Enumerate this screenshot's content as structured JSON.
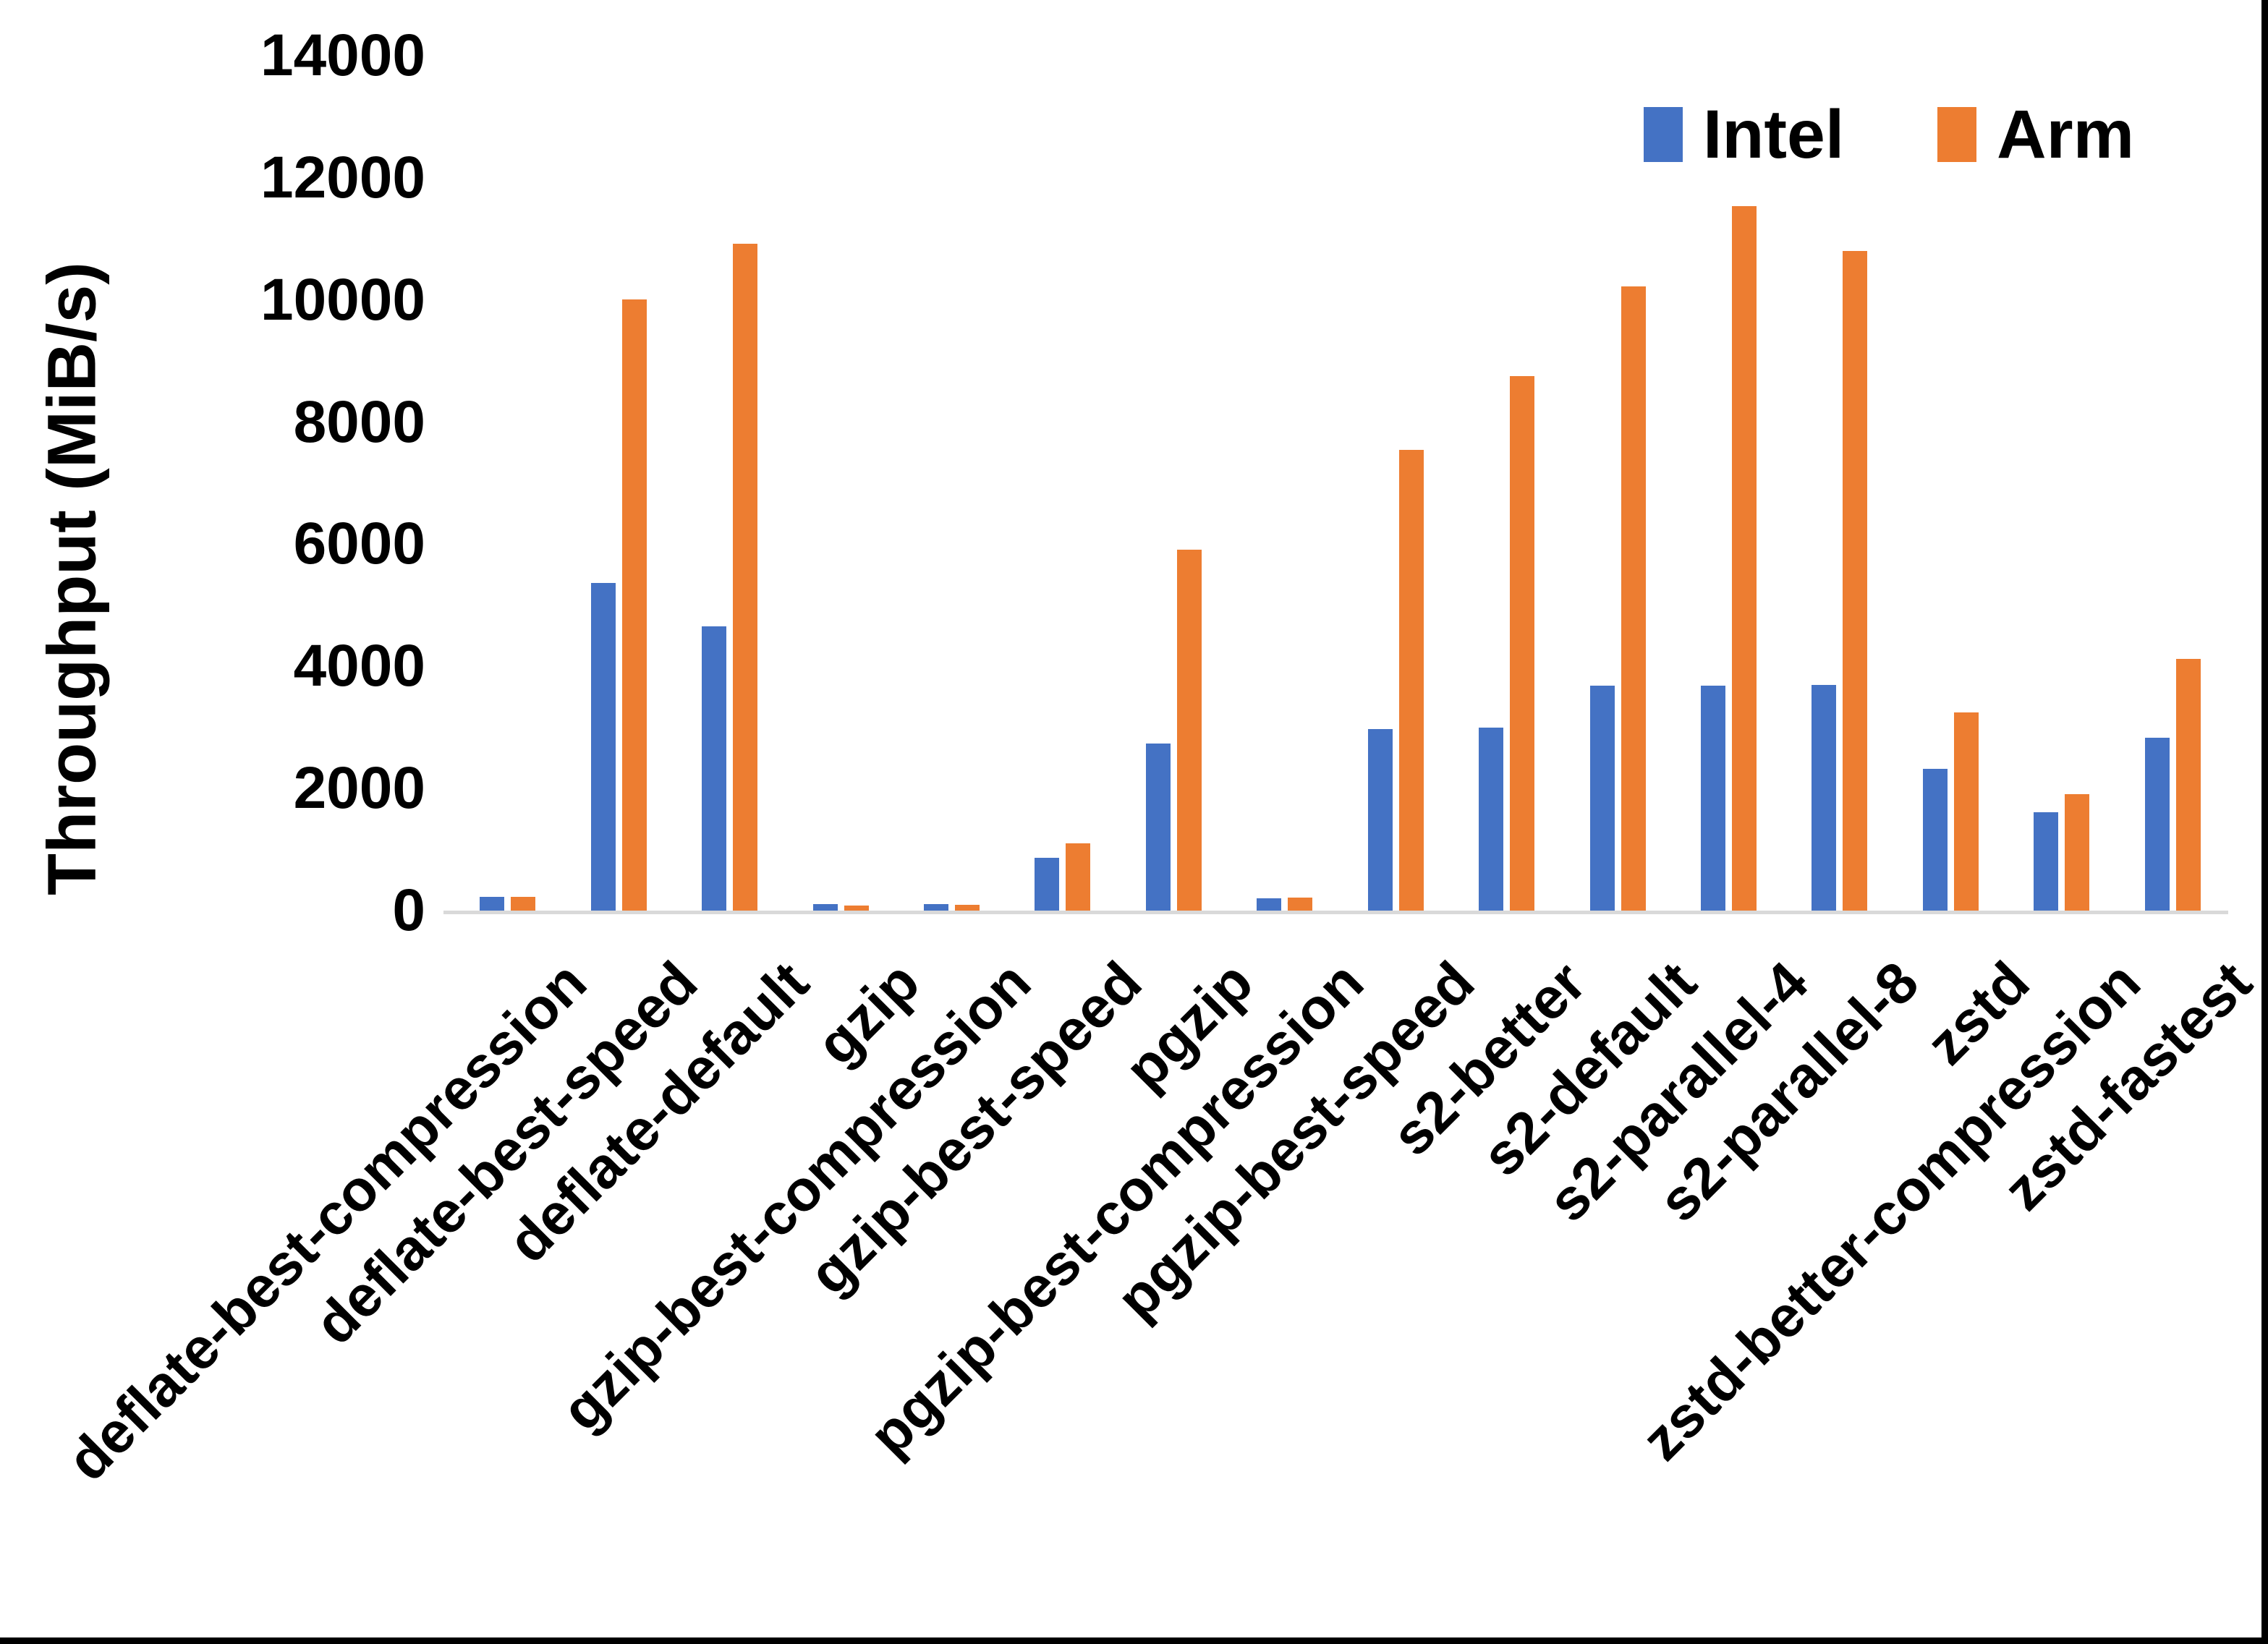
{
  "chart_data": {
    "type": "bar",
    "title": "",
    "xlabel": "",
    "ylabel": "Throughput (MiB/s)",
    "ylim": [
      0,
      14000
    ],
    "ytick_step": 2000,
    "y_tick_labels": [
      "0",
      "2000",
      "4000",
      "6000",
      "8000",
      "10000",
      "12000",
      "14000"
    ],
    "grid": false,
    "legend_position": "top-right",
    "categories": [
      "deflate-best-compression",
      "deflate-best-speed",
      "deflate-default",
      "gzip",
      "gzip-best-compression",
      "gzip-best-speed",
      "pgzip",
      "pgzip-best-compression",
      "pgzip-best-speed",
      "s2-better",
      "s2-default",
      "s2-parallel-4",
      "s2-parallel-8",
      "zstd",
      "zstd-better-compression",
      "zstd-fastest"
    ],
    "series": [
      {
        "name": "Intel",
        "color": "#4472C4",
        "values": [
          250,
          5390,
          4680,
          130,
          130,
          890,
          2760,
          225,
          3000,
          3020,
          3710,
          3710,
          3720,
          2350,
          1630,
          2860
        ]
      },
      {
        "name": "Arm",
        "color": "#ED7D31",
        "values": [
          245,
          10030,
          10950,
          110,
          115,
          1120,
          5930,
          235,
          7570,
          8780,
          10250,
          11560,
          10830,
          3270,
          1930,
          4140
        ]
      }
    ],
    "axis_line_color": "#D9D9D9"
  },
  "frame": {
    "right_edge_color": "#000000",
    "bottom_edge_color": "#000000"
  }
}
